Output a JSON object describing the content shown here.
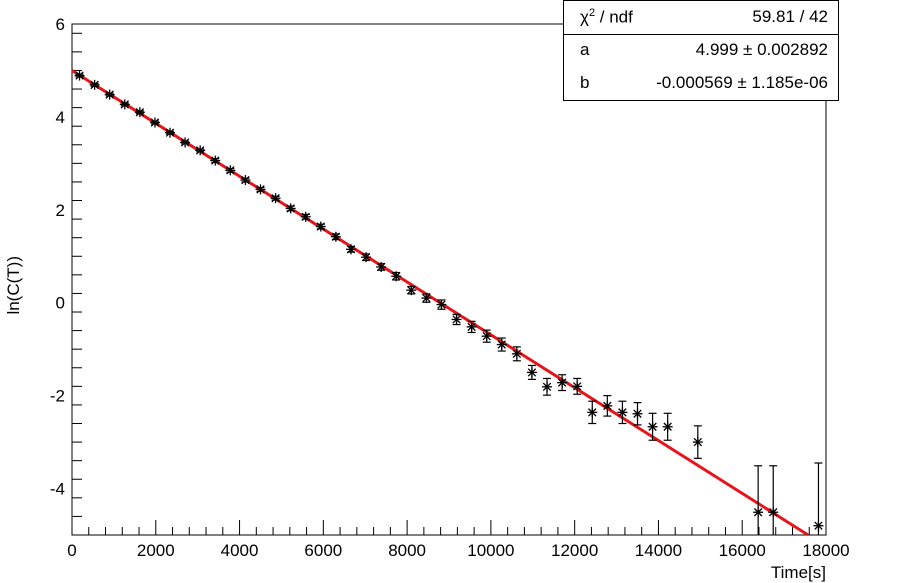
{
  "chart_data": {
    "type": "scatter",
    "title": "",
    "xlabel": "Time[s]",
    "ylabel": "ln(C(T))",
    "xlim": [
      0,
      18000
    ],
    "ylim": [
      -5,
      6
    ],
    "x_ticks": [
      0,
      2000,
      4000,
      6000,
      8000,
      10000,
      12000,
      14000,
      16000,
      18000
    ],
    "y_ticks": [
      -4,
      -2,
      0,
      2,
      4,
      6
    ],
    "grid": false,
    "fit_color": "#e8141b",
    "marker_color": "#000000",
    "fit": {
      "a": 4.999,
      "b": -0.000569
    },
    "stats": {
      "chi2_label": "χ",
      "chi2_sup": "2",
      "chi2_rest": " / ndf",
      "chi2_value": "59.81 / 42",
      "a_label": "a",
      "a_value": "4.999 ± 0.002892",
      "b_label": "b",
      "b_value": "-0.000569 ± 1.185e-06"
    },
    "points": [
      {
        "x": 180,
        "y": 4.89,
        "err": 0.03
      },
      {
        "x": 540,
        "y": 4.69,
        "err": 0.03
      },
      {
        "x": 900,
        "y": 4.48,
        "err": 0.03
      },
      {
        "x": 1260,
        "y": 4.27,
        "err": 0.03
      },
      {
        "x": 1620,
        "y": 4.1,
        "err": 0.03
      },
      {
        "x": 1980,
        "y": 3.88,
        "err": 0.03
      },
      {
        "x": 2340,
        "y": 3.66,
        "err": 0.03
      },
      {
        "x": 2700,
        "y": 3.45,
        "err": 0.03
      },
      {
        "x": 3060,
        "y": 3.28,
        "err": 0.03
      },
      {
        "x": 3420,
        "y": 3.06,
        "err": 0.04
      },
      {
        "x": 3780,
        "y": 2.85,
        "err": 0.04
      },
      {
        "x": 4140,
        "y": 2.64,
        "err": 0.04
      },
      {
        "x": 4500,
        "y": 2.44,
        "err": 0.04
      },
      {
        "x": 4860,
        "y": 2.25,
        "err": 0.04
      },
      {
        "x": 5220,
        "y": 2.03,
        "err": 0.05
      },
      {
        "x": 5580,
        "y": 1.85,
        "err": 0.05
      },
      {
        "x": 5940,
        "y": 1.64,
        "err": 0.05
      },
      {
        "x": 6300,
        "y": 1.42,
        "err": 0.06
      },
      {
        "x": 6660,
        "y": 1.15,
        "err": 0.06
      },
      {
        "x": 7020,
        "y": 0.98,
        "err": 0.07
      },
      {
        "x": 7380,
        "y": 0.77,
        "err": 0.07
      },
      {
        "x": 7740,
        "y": 0.57,
        "err": 0.08
      },
      {
        "x": 8100,
        "y": 0.27,
        "err": 0.08
      },
      {
        "x": 8460,
        "y": 0.1,
        "err": 0.09
      },
      {
        "x": 8820,
        "y": -0.04,
        "err": 0.1
      },
      {
        "x": 9180,
        "y": -0.36,
        "err": 0.11
      },
      {
        "x": 9540,
        "y": -0.52,
        "err": 0.12
      },
      {
        "x": 9900,
        "y": -0.72,
        "err": 0.13
      },
      {
        "x": 10260,
        "y": -0.9,
        "err": 0.14
      },
      {
        "x": 10620,
        "y": -1.1,
        "err": 0.15
      },
      {
        "x": 10980,
        "y": -1.5,
        "err": 0.15
      },
      {
        "x": 11340,
        "y": -1.81,
        "err": 0.18
      },
      {
        "x": 11700,
        "y": -1.72,
        "err": 0.17
      },
      {
        "x": 12060,
        "y": -1.8,
        "err": 0.17
      },
      {
        "x": 12420,
        "y": -2.36,
        "err": 0.24
      },
      {
        "x": 12780,
        "y": -2.22,
        "err": 0.22
      },
      {
        "x": 13140,
        "y": -2.36,
        "err": 0.24
      },
      {
        "x": 13500,
        "y": -2.39,
        "err": 0.24
      },
      {
        "x": 13860,
        "y": -2.67,
        "err": 0.29
      },
      {
        "x": 14220,
        "y": -2.67,
        "err": 0.29
      },
      {
        "x": 14940,
        "y": -3.0,
        "err": 0.35
      },
      {
        "x": 16380,
        "y": -4.51,
        "err": 1.0
      },
      {
        "x": 16740,
        "y": -4.51,
        "err": 1.0
      },
      {
        "x": 17820,
        "y": -4.8,
        "err": 1.35
      }
    ]
  }
}
